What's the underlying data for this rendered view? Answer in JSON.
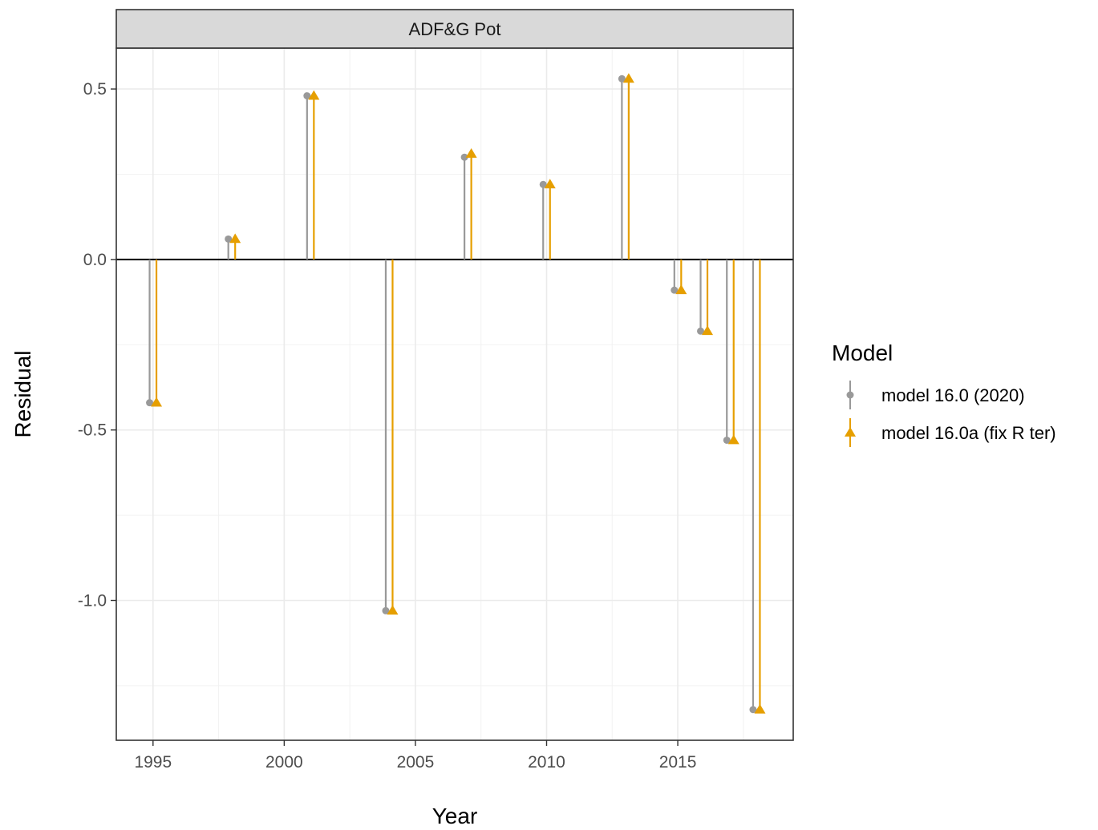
{
  "chart_data": {
    "type": "scatter",
    "facet_label": "ADF&G Pot",
    "xlabel": "Year",
    "ylabel": "Residual",
    "xlim": [
      1993.6,
      2019.4
    ],
    "ylim": [
      -1.41,
      0.62
    ],
    "x_ticks": [
      1995,
      2000,
      2005,
      2010,
      2015
    ],
    "y_ticks": [
      0.5,
      0.0,
      -0.5,
      -1.0
    ],
    "y_tick_labels": [
      "0.5",
      "0.0",
      "-0.5",
      "-1.0"
    ],
    "grid": true,
    "reference_line_y": 0,
    "legend": {
      "title": "Model",
      "position": "right"
    },
    "series": [
      {
        "name": "model 16.0 (2020)",
        "color": "#999999",
        "marker": "circle",
        "offset": -0.13,
        "x": [
          1995,
          1998,
          2001,
          2004,
          2007,
          2010,
          2013,
          2015,
          2016,
          2017,
          2018
        ],
        "y": [
          -0.42,
          0.06,
          0.48,
          -1.03,
          0.3,
          0.22,
          0.53,
          -0.09,
          -0.21,
          -0.53,
          -1.32
        ]
      },
      {
        "name": "model 16.0a (fix R ter)",
        "color": "#E69F00",
        "marker": "triangle",
        "offset": 0.13,
        "x": [
          1995,
          1998,
          2001,
          2004,
          2007,
          2010,
          2013,
          2015,
          2016,
          2017,
          2018
        ],
        "y": [
          -0.42,
          0.06,
          0.48,
          -1.03,
          0.31,
          0.22,
          0.53,
          -0.09,
          -0.21,
          -0.53,
          -1.32
        ]
      }
    ]
  }
}
